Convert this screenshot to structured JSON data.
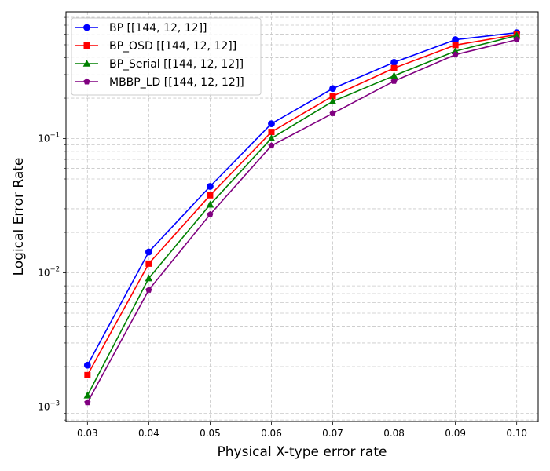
{
  "chart_data": {
    "type": "line",
    "title": "",
    "xlabel": "Physical X-type error rate",
    "ylabel": "Logical Error Rate",
    "yscale": "log",
    "x": [
      0.03,
      0.04,
      0.05,
      0.06,
      0.07,
      0.08,
      0.09,
      0.1
    ],
    "x_tick_labels": [
      "0.03",
      "0.04",
      "0.05",
      "0.06",
      "0.07",
      "0.08",
      "0.09",
      "0.10"
    ],
    "xlim": [
      0.0265,
      0.1035
    ],
    "ylim": [
      0.00078,
      0.88
    ],
    "y_ticks": [
      {
        "value": 0.001,
        "base": "10",
        "exp": "−3"
      },
      {
        "value": 0.01,
        "base": "10",
        "exp": "−2"
      },
      {
        "value": 0.1,
        "base": "10",
        "exp": "−1"
      }
    ],
    "grid": true,
    "legend_position": "top-left",
    "series": [
      {
        "name": "BP [[144, 12, 12]]",
        "color": "#0000ff",
        "marker": "circle",
        "values": [
          0.00205,
          0.0143,
          0.044,
          0.129,
          0.236,
          0.37,
          0.545,
          0.615
        ]
      },
      {
        "name": "BP_OSD [[144, 12, 12]]",
        "color": "#ff0000",
        "marker": "square",
        "values": [
          0.00173,
          0.0117,
          0.0378,
          0.112,
          0.207,
          0.335,
          0.497,
          0.595
        ]
      },
      {
        "name": "BP_Serial [[144, 12, 12]]",
        "color": "#008000",
        "marker": "triangle",
        "values": [
          0.00122,
          0.0091,
          0.0322,
          0.1005,
          0.189,
          0.294,
          0.448,
          0.585
        ]
      },
      {
        "name": "MBBP_LD [[144, 12, 12]]",
        "color": "#800080",
        "marker": "pentagon",
        "values": [
          0.00108,
          0.00745,
          0.0272,
          0.0885,
          0.154,
          0.268,
          0.422,
          0.545
        ]
      }
    ]
  }
}
